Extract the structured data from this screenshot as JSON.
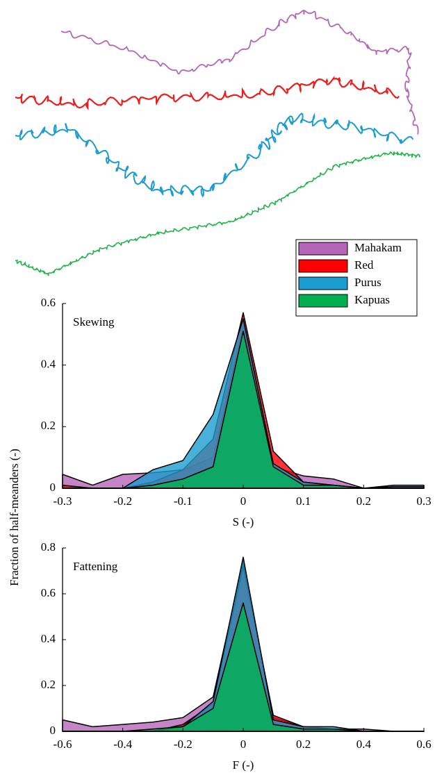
{
  "chart_data": [
    {
      "type": "area",
      "annotation": "Skewing",
      "xlabel": "S (-)",
      "ylabel": "Fraction of half-meanders (-)",
      "x": [
        -0.3,
        -0.25,
        -0.2,
        -0.15,
        -0.1,
        -0.05,
        0,
        0.05,
        0.1,
        0.15,
        0.2,
        0.25,
        0.3
      ],
      "series": [
        {
          "name": "Mahakam",
          "color": "#b565b8",
          "values": [
            0.045,
            0.01,
            0.045,
            0.05,
            0.06,
            0.1,
            0.53,
            0.07,
            0.04,
            0.03,
            0.0,
            0.01,
            0.01
          ]
        },
        {
          "name": "Red",
          "color": "#ff0000",
          "values": [
            0.01,
            0,
            0,
            0.02,
            0.06,
            0.16,
            0.57,
            0.12,
            0.02,
            0.01,
            0,
            0,
            0
          ]
        },
        {
          "name": "Purus",
          "color": "#1a9cd0",
          "values": [
            0,
            0,
            0,
            0.06,
            0.09,
            0.24,
            0.55,
            0.08,
            0.02,
            0.01,
            0,
            0.005,
            0.005
          ]
        },
        {
          "name": "Kapuas",
          "color": "#00b050",
          "values": [
            0,
            0,
            0,
            0.01,
            0.03,
            0.07,
            0.51,
            0.07,
            0.01,
            0.01,
            0,
            0,
            0
          ]
        }
      ],
      "xlim": [
        -0.3,
        0.3
      ],
      "ylim": [
        0,
        0.6
      ],
      "xticks": [
        -0.3,
        -0.2,
        -0.1,
        0,
        0.1,
        0.2,
        0.3
      ],
      "yticks": [
        0,
        0.2,
        0.4,
        0.6
      ]
    },
    {
      "type": "area",
      "annotation": "Fattening",
      "xlabel": "F (-)",
      "x": [
        -0.6,
        -0.5,
        -0.4,
        -0.3,
        -0.2,
        -0.1,
        0,
        0.1,
        0.2,
        0.3,
        0.4,
        0.5,
        0.6
      ],
      "series": [
        {
          "color": "#b565b8",
          "values": [
            0.05,
            0.02,
            0.03,
            0.04,
            0.06,
            0.15,
            0.74,
            0.06,
            0.02,
            0.01,
            0.01,
            0,
            0
          ]
        },
        {
          "color": "#ff0000",
          "values": [
            0,
            0,
            0,
            0,
            0.03,
            0.12,
            0.72,
            0.07,
            0.02,
            0.01,
            0,
            0,
            0
          ]
        },
        {
          "color": "#1a9cd0",
          "values": [
            0,
            0,
            0,
            0,
            0.02,
            0.13,
            0.76,
            0.05,
            0.02,
            0.02,
            0,
            0,
            0
          ]
        },
        {
          "color": "#00b050",
          "values": [
            0,
            0,
            0,
            0.01,
            0.02,
            0.1,
            0.56,
            0.03,
            0.01,
            0.01,
            0,
            0,
            0
          ]
        }
      ],
      "xlim": [
        -0.6,
        0.6
      ],
      "ylim": [
        0,
        0.8
      ],
      "xticks": [
        -0.6,
        -0.4,
        -0.2,
        0,
        0.2,
        0.4,
        0.6
      ],
      "yticks": [
        0,
        0.2,
        0.4,
        0.6,
        0.8
      ]
    }
  ]
}
